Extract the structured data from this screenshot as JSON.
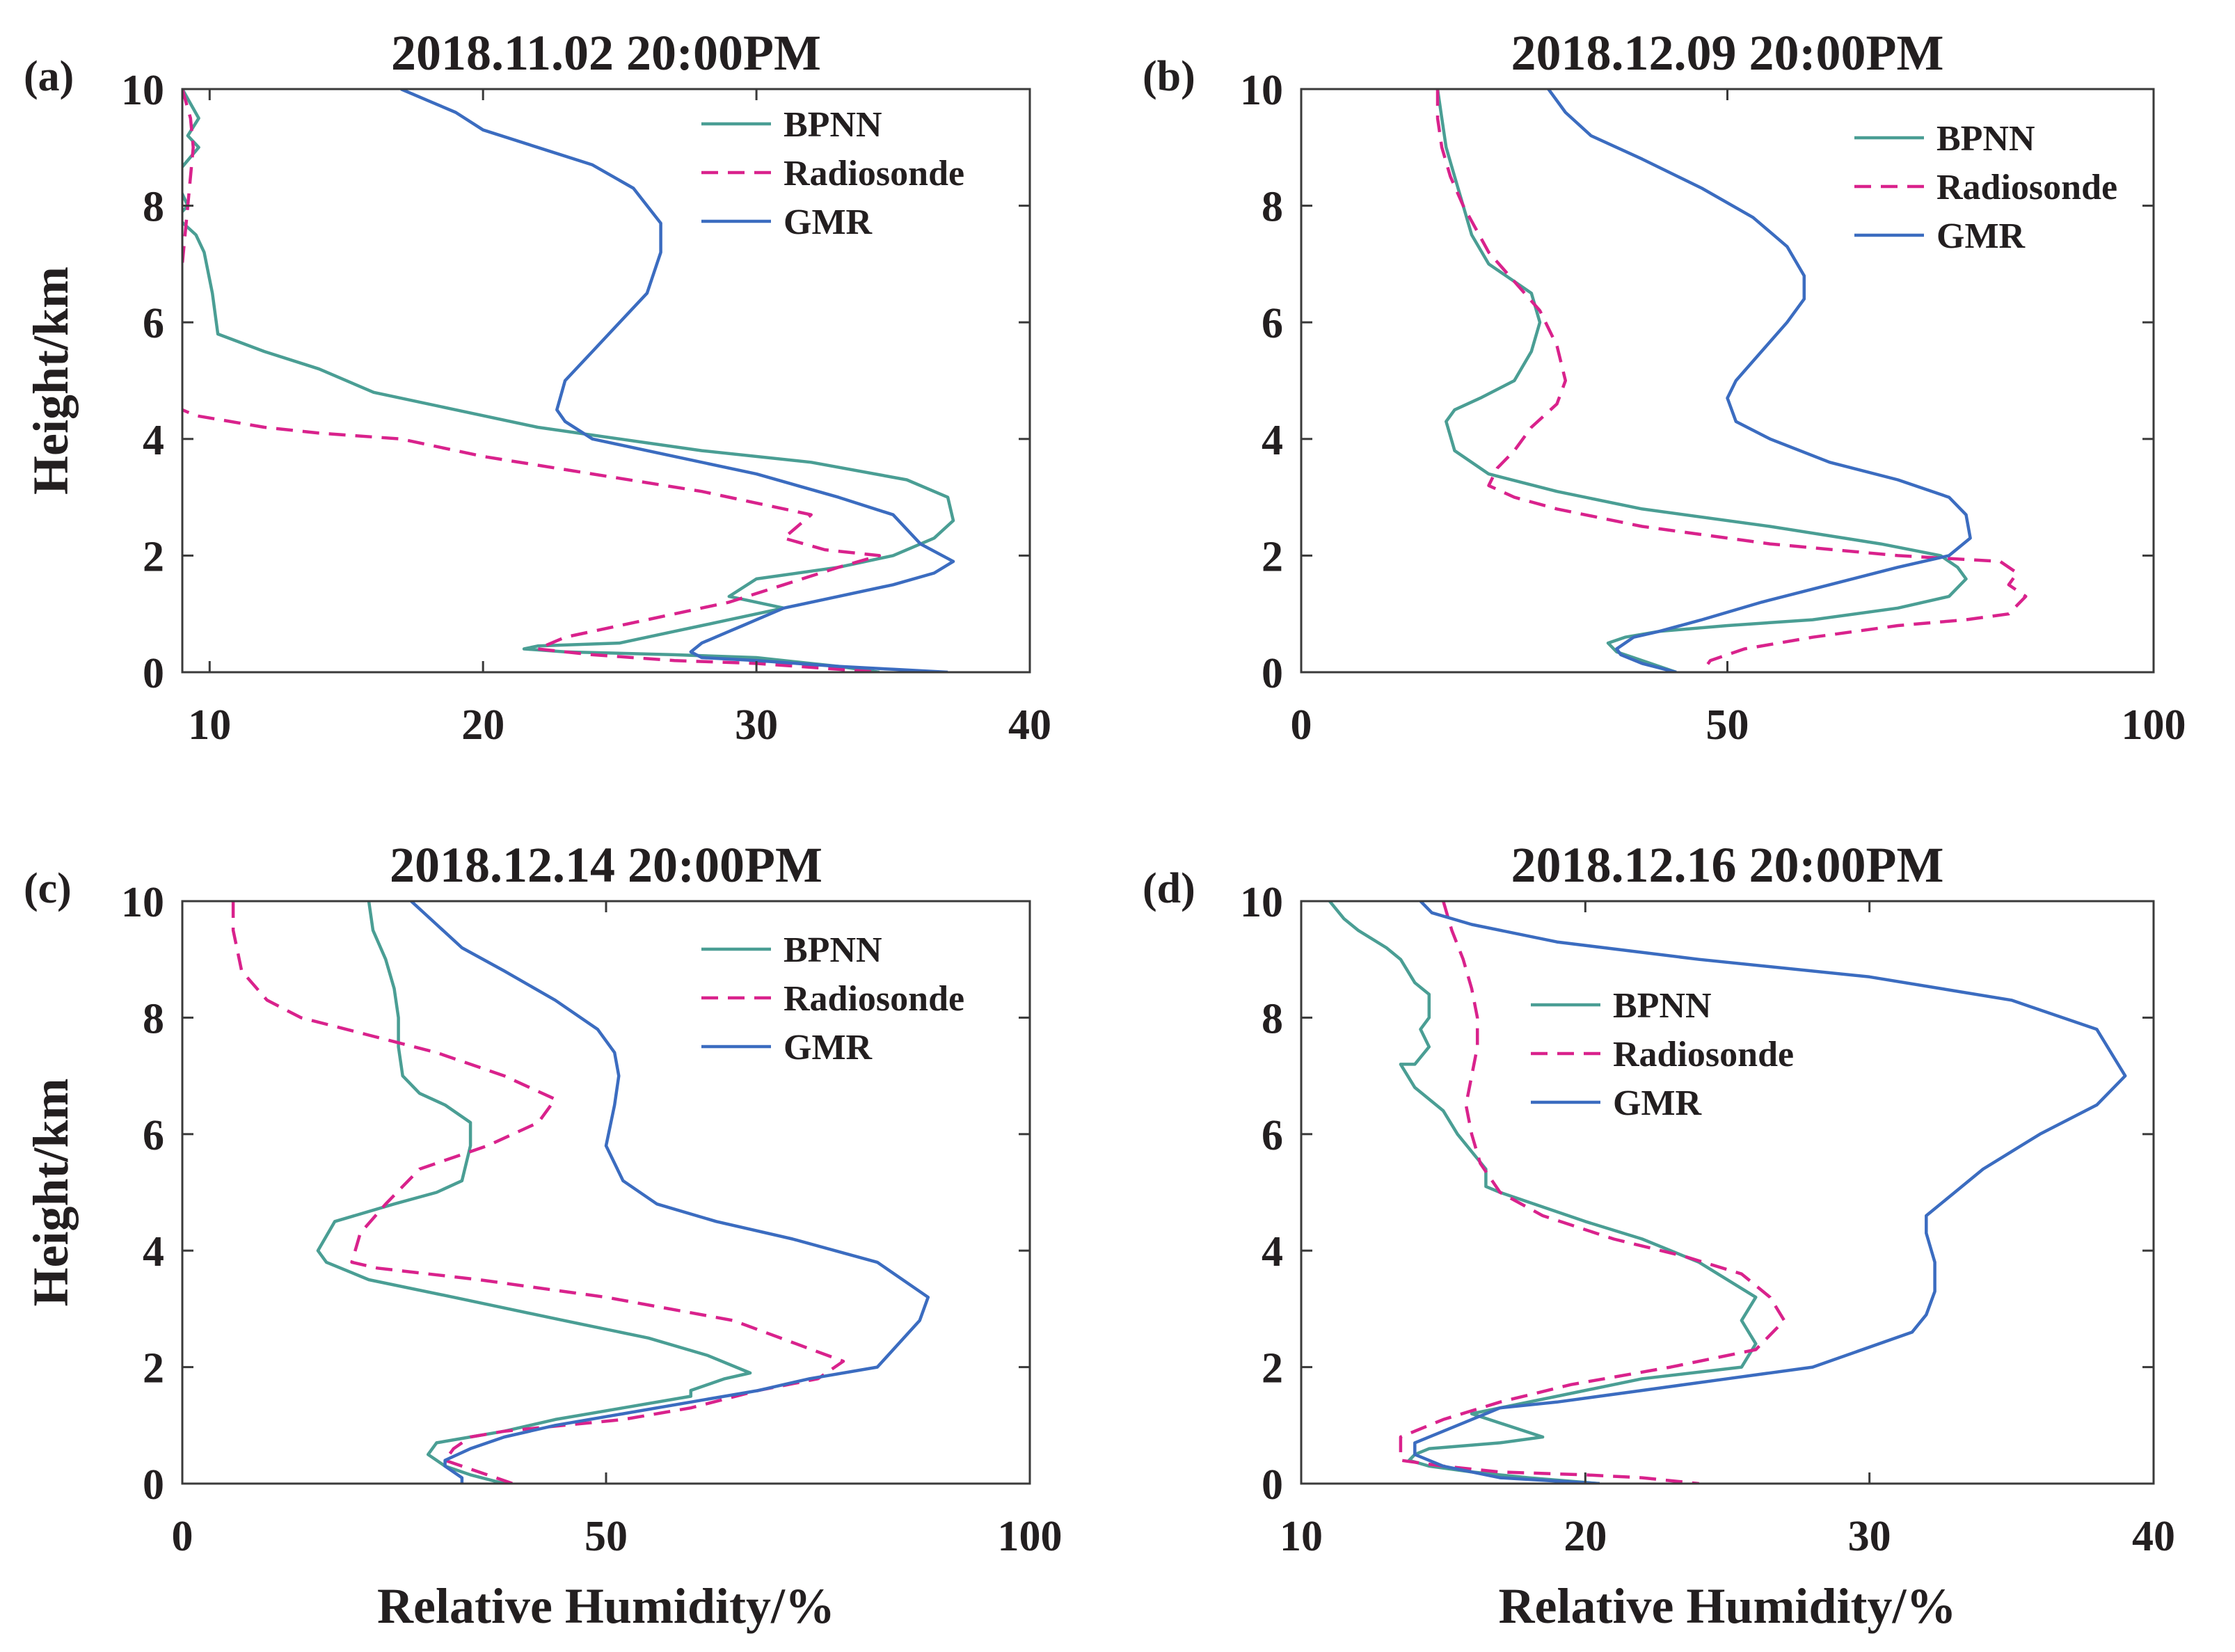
{
  "colors": {
    "bpnn": "#4a9e94",
    "radiosonde": "#d9228c",
    "gmr": "#3b6cc0"
  },
  "chart_data": [
    {
      "type": "line",
      "panel_label": "(a)",
      "title": "2018.11.02 20:00PM",
      "xlabel": "",
      "ylabel": "Height/km",
      "xlim": [
        9,
        40
      ],
      "ylim": [
        0,
        10
      ],
      "xticks": [
        10,
        20,
        30,
        40
      ],
      "yticks": [
        0,
        2,
        4,
        6,
        8,
        10
      ],
      "legend_position": "top-right",
      "series": [
        {
          "name": "BPNN",
          "style": "solid",
          "x": [
            9,
            9.6,
            9.2,
            9.6,
            8.7,
            9.2,
            8.8,
            9.5,
            9.8,
            10.1,
            10.3,
            12,
            14,
            16,
            19,
            22,
            25,
            28,
            32,
            35.5,
            37,
            37.2,
            36.5,
            35,
            33,
            30,
            29,
            31,
            30,
            29,
            28,
            27,
            25,
            22,
            21.5,
            23,
            27,
            30,
            33,
            34.5
          ],
          "y": [
            10,
            9.5,
            9.2,
            9,
            8.5,
            8,
            7.8,
            7.5,
            7.2,
            6.5,
            5.8,
            5.5,
            5.2,
            4.8,
            4.5,
            4.2,
            4,
            3.8,
            3.6,
            3.3,
            3,
            2.6,
            2.3,
            2,
            1.8,
            1.6,
            1.3,
            1.1,
            1,
            0.9,
            0.8,
            0.7,
            0.5,
            0.45,
            0.4,
            0.35,
            0.3,
            0.25,
            0.1,
            0
          ]
        },
        {
          "name": "Radiosonde",
          "style": "dashed",
          "x": [
            9,
            9.3,
            9.4,
            9.2,
            9,
            8.8,
            8.5,
            8.8,
            9,
            9.5,
            12,
            14,
            17,
            20,
            24,
            28,
            32,
            31,
            32.5,
            34.5,
            33,
            31,
            29,
            27,
            25,
            23,
            22,
            24,
            27,
            30,
            33,
            34.5
          ],
          "y": [
            10,
            9.5,
            9,
            8,
            7,
            6,
            5,
            4.6,
            4.5,
            4.4,
            4.2,
            4.1,
            4,
            3.7,
            3.4,
            3.1,
            2.7,
            2.3,
            2.1,
            2,
            1.8,
            1.5,
            1.2,
            1,
            0.8,
            0.6,
            0.4,
            0.3,
            0.2,
            0.15,
            0.05,
            0
          ]
        },
        {
          "name": "GMR",
          "style": "solid",
          "x": [
            17,
            18,
            19,
            20,
            22,
            24,
            25.5,
            26.5,
            26.5,
            26,
            25,
            24,
            23,
            22.7,
            23,
            24,
            27,
            30,
            33,
            35,
            36,
            37.2,
            36.5,
            35,
            33,
            31,
            30,
            29.5,
            29,
            28,
            27.6,
            28,
            30,
            33,
            35,
            37
          ],
          "y": [
            10,
            9.8,
            9.6,
            9.3,
            9,
            8.7,
            8.3,
            7.7,
            7.2,
            6.5,
            6,
            5.5,
            5,
            4.5,
            4.3,
            4,
            3.7,
            3.4,
            3,
            2.7,
            2.2,
            1.9,
            1.7,
            1.5,
            1.3,
            1.1,
            0.9,
            0.8,
            0.7,
            0.5,
            0.35,
            0.25,
            0.2,
            0.1,
            0.05,
            0
          ]
        }
      ]
    },
    {
      "type": "line",
      "panel_label": "(b)",
      "title": "2018.12.09 20:00PM",
      "xlabel": "",
      "ylabel": "",
      "xlim": [
        0,
        100
      ],
      "ylim": [
        0,
        10
      ],
      "xticks": [
        0,
        50,
        100
      ],
      "yticks": [
        0,
        2,
        4,
        6,
        8,
        10
      ],
      "legend_position": "top-right",
      "series": [
        {
          "name": "BPNN",
          "style": "solid",
          "x": [
            16,
            16.5,
            17,
            18,
            19,
            20,
            22,
            25,
            27,
            28,
            27,
            25,
            21,
            18,
            17,
            18,
            22,
            30,
            40,
            55,
            68,
            75,
            77,
            78,
            76,
            70,
            60,
            50,
            42,
            38,
            36,
            37,
            40,
            44
          ],
          "y": [
            10,
            9.5,
            9,
            8.5,
            8,
            7.5,
            7,
            6.7,
            6.5,
            6,
            5.5,
            5,
            4.7,
            4.5,
            4.3,
            3.8,
            3.4,
            3.1,
            2.8,
            2.5,
            2.2,
            2,
            1.8,
            1.6,
            1.3,
            1.1,
            0.9,
            0.8,
            0.7,
            0.6,
            0.5,
            0.35,
            0.2,
            0
          ]
        },
        {
          "name": "Radiosonde",
          "style": "dashed",
          "x": [
            16,
            16,
            16.5,
            17.5,
            19,
            22,
            25,
            28,
            30,
            31,
            30,
            27,
            25,
            23,
            22,
            25,
            30,
            40,
            55,
            70,
            82,
            84,
            83,
            85,
            83,
            78,
            70,
            60,
            52,
            48,
            47
          ],
          "y": [
            10,
            9.5,
            9,
            8.5,
            8,
            7.2,
            6.7,
            6.2,
            5.6,
            5,
            4.6,
            4.2,
            3.8,
            3.5,
            3.2,
            3,
            2.8,
            2.5,
            2.2,
            2,
            1.9,
            1.7,
            1.5,
            1.3,
            1,
            0.9,
            0.8,
            0.6,
            0.4,
            0.2,
            0
          ]
        },
        {
          "name": "GMR",
          "style": "solid",
          "x": [
            29,
            31,
            34,
            40,
            47,
            53,
            57,
            59,
            59,
            57,
            54,
            51,
            50,
            51,
            55,
            62,
            70,
            76,
            78,
            78.5,
            76,
            70,
            62,
            54,
            47,
            42,
            39,
            38,
            37,
            37.5,
            40,
            44
          ],
          "y": [
            10,
            9.6,
            9.2,
            8.8,
            8.3,
            7.8,
            7.3,
            6.8,
            6.4,
            6,
            5.5,
            5,
            4.7,
            4.3,
            4,
            3.6,
            3.3,
            3,
            2.7,
            2.3,
            2,
            1.8,
            1.5,
            1.2,
            0.9,
            0.7,
            0.6,
            0.5,
            0.4,
            0.3,
            0.15,
            0
          ]
        }
      ]
    },
    {
      "type": "line",
      "panel_label": "(c)",
      "title": "2018.12.14 20:00PM",
      "xlabel": "Relative Humidity/%",
      "ylabel": "Height/km",
      "xlim": [
        0,
        100
      ],
      "ylim": [
        0,
        10
      ],
      "xticks": [
        0,
        50,
        100
      ],
      "yticks": [
        0,
        2,
        4,
        6,
        8,
        10
      ],
      "legend_position": "top-right",
      "series": [
        {
          "name": "BPNN",
          "style": "solid",
          "x": [
            22,
            22.5,
            24,
            25,
            25.5,
            25.5,
            26,
            28,
            31,
            34,
            34,
            33,
            30,
            25,
            18,
            16,
            17,
            22,
            32,
            45,
            55,
            62,
            67,
            64,
            60,
            60,
            52,
            44,
            38,
            34,
            30,
            29,
            30,
            31,
            34,
            38
          ],
          "y": [
            10,
            9.5,
            9,
            8.5,
            8,
            7.5,
            7,
            6.7,
            6.5,
            6.2,
            5.8,
            5.2,
            5,
            4.8,
            4.5,
            4,
            3.8,
            3.5,
            3.2,
            2.8,
            2.5,
            2.2,
            1.9,
            1.8,
            1.6,
            1.5,
            1.3,
            1.1,
            0.9,
            0.8,
            0.7,
            0.5,
            0.4,
            0.3,
            0.15,
            0
          ]
        },
        {
          "name": "Radiosonde",
          "style": "dashed",
          "x": [
            6,
            6,
            7,
            10,
            14,
            22,
            30,
            38,
            44,
            42,
            36,
            28,
            24,
            21,
            20,
            23,
            35,
            50,
            65,
            78,
            75,
            68,
            60,
            52,
            45,
            38,
            34,
            32,
            31,
            33,
            36,
            39
          ],
          "y": [
            10,
            9.5,
            8.8,
            8.3,
            8,
            7.7,
            7.4,
            7,
            6.6,
            6.2,
            5.8,
            5.4,
            4.8,
            4.3,
            3.8,
            3.7,
            3.5,
            3.2,
            2.8,
            2.1,
            1.8,
            1.6,
            1.3,
            1.1,
            1,
            0.9,
            0.8,
            0.6,
            0.4,
            0.3,
            0.15,
            0
          ]
        },
        {
          "name": "GMR",
          "style": "solid",
          "x": [
            27,
            30,
            33,
            38,
            44,
            49,
            51,
            51.5,
            51,
            50,
            52,
            56,
            63,
            72,
            82,
            88,
            87,
            82,
            74,
            68,
            60,
            52,
            44,
            38,
            34,
            31,
            31,
            33,
            33
          ],
          "y": [
            10,
            9.6,
            9.2,
            8.8,
            8.3,
            7.8,
            7.4,
            7,
            6.5,
            5.8,
            5.2,
            4.8,
            4.5,
            4.2,
            3.8,
            3.2,
            2.8,
            2,
            1.8,
            1.6,
            1.4,
            1.2,
            1,
            0.8,
            0.6,
            0.4,
            0.3,
            0.1,
            0
          ]
        }
      ]
    },
    {
      "type": "line",
      "panel_label": "(d)",
      "title": "2018.12.16 20:00PM",
      "xlabel": "Relative Humidity/%",
      "ylabel": "",
      "xlim": [
        10,
        40
      ],
      "ylim": [
        0,
        10
      ],
      "xticks": [
        10,
        20,
        30,
        40
      ],
      "yticks": [
        0,
        2,
        4,
        6,
        8,
        10
      ],
      "legend_position": "upper-left",
      "series": [
        {
          "name": "BPNN",
          "style": "solid",
          "x": [
            11,
            11.5,
            12,
            13,
            13.5,
            14,
            14.5,
            14.5,
            14.2,
            14.5,
            14,
            13.5,
            14,
            15,
            15.5,
            16,
            16.5,
            16.5,
            17,
            20,
            22,
            24,
            26,
            25.5,
            26,
            25.5,
            22,
            19,
            17,
            16,
            18.5,
            17,
            14.5,
            14,
            13.8,
            14.5,
            16,
            18,
            20.5
          ],
          "y": [
            10,
            9.7,
            9.5,
            9.2,
            9,
            8.6,
            8.4,
            8,
            7.8,
            7.5,
            7.2,
            7.2,
            6.8,
            6.4,
            6,
            5.7,
            5.4,
            5.1,
            5,
            4.5,
            4.2,
            3.8,
            3.2,
            2.8,
            2.4,
            2,
            1.8,
            1.5,
            1.3,
            1.2,
            0.8,
            0.7,
            0.6,
            0.5,
            0.4,
            0.3,
            0.2,
            0.1,
            0
          ]
        },
        {
          "name": "Radiosonde",
          "style": "dashed",
          "x": [
            15,
            15.3,
            15.7,
            16,
            16.2,
            16.2,
            16,
            15.8,
            16,
            16.3,
            17,
            18.5,
            21,
            23.5,
            25.5,
            26.5,
            27,
            26,
            23,
            19.5,
            17,
            15,
            13.5,
            13.5,
            15,
            17,
            20,
            22,
            24
          ],
          "y": [
            10,
            9.5,
            9,
            8.5,
            8,
            7.5,
            7,
            6.5,
            6,
            5.5,
            5,
            4.6,
            4.2,
            3.9,
            3.6,
            3.2,
            2.8,
            2.3,
            2,
            1.7,
            1.4,
            1.1,
            0.8,
            0.4,
            0.3,
            0.2,
            0.15,
            0.1,
            0
          ]
        },
        {
          "name": "GMR",
          "style": "solid",
          "x": [
            14.2,
            14.6,
            16,
            19,
            24,
            30,
            35,
            38,
            39,
            38,
            36,
            35,
            34,
            33,
            32,
            32,
            32.3,
            32.3,
            32,
            31.5,
            28,
            25,
            22,
            19,
            17,
            16.5,
            16,
            15,
            14,
            14,
            15,
            17,
            20.5
          ],
          "y": [
            10,
            9.8,
            9.6,
            9.3,
            9,
            8.7,
            8.3,
            7.8,
            7,
            6.5,
            6,
            5.7,
            5.4,
            5,
            4.6,
            4.3,
            3.8,
            3.3,
            2.9,
            2.6,
            2,
            1.8,
            1.6,
            1.4,
            1.3,
            1.2,
            1.1,
            0.9,
            0.7,
            0.5,
            0.3,
            0.1,
            0
          ]
        }
      ]
    }
  ]
}
